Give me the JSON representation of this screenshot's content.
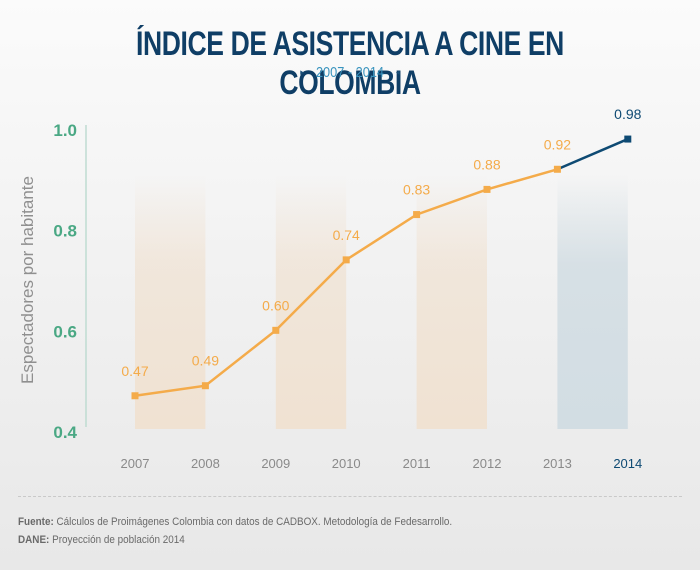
{
  "header": {
    "title": "ÍNDICE DE ASISTENCIA A CINE EN COLOMBIA",
    "subtitle": "2007 - 2014",
    "left_marker_icon": "▸",
    "right_marker_icon": "◂"
  },
  "colors": {
    "title": "#0f3e66",
    "subtitle": "#3a94be",
    "axis_labels": "#4aa884",
    "series_main": "#f4ab4a",
    "series_highlight": "#0e4a73",
    "band_orange": "#f0e2d2",
    "band_blue": "#d2dde3",
    "year_labels": "#8a8a8a"
  },
  "chart_data": {
    "type": "line",
    "title": "ÍNDICE DE ASISTENCIA A CINE EN COLOMBIA",
    "subtitle": "2007 - 2014",
    "xlabel": "",
    "ylabel": "Espectadores por habitante",
    "categories": [
      "2007",
      "2008",
      "2009",
      "2010",
      "2011",
      "2012",
      "2013",
      "2014"
    ],
    "series": [
      {
        "name": "Espectadores por habitante",
        "values": [
          0.47,
          0.49,
          0.6,
          0.74,
          0.83,
          0.88,
          0.92,
          0.98
        ]
      }
    ],
    "data_labels": [
      "0.47",
      "0.49",
      "0.60",
      "0.74",
      "0.83",
      "0.88",
      "0.92",
      "0.98"
    ],
    "highlight_category": "2014",
    "ylim": [
      0.4,
      1.0
    ],
    "yticks": [
      "0.4",
      "0.6",
      "0.8",
      "1.0"
    ],
    "grid": false,
    "legend": "none",
    "background_bands": [
      {
        "from": "2007",
        "to": "2008",
        "style": "orange"
      },
      {
        "from": "2009",
        "to": "2010",
        "style": "orange"
      },
      {
        "from": "2011",
        "to": "2012",
        "style": "orange"
      },
      {
        "from": "2013",
        "to": "2014",
        "style": "blue"
      }
    ]
  },
  "footer": {
    "source_label": "Fuente:",
    "source_text": " Cálculos de Proimágenes Colombia con datos de CADBOX. Metodología de Fedesarrollo.",
    "dane_label": "DANE:",
    "dane_text": " Proyección de población 2014"
  }
}
